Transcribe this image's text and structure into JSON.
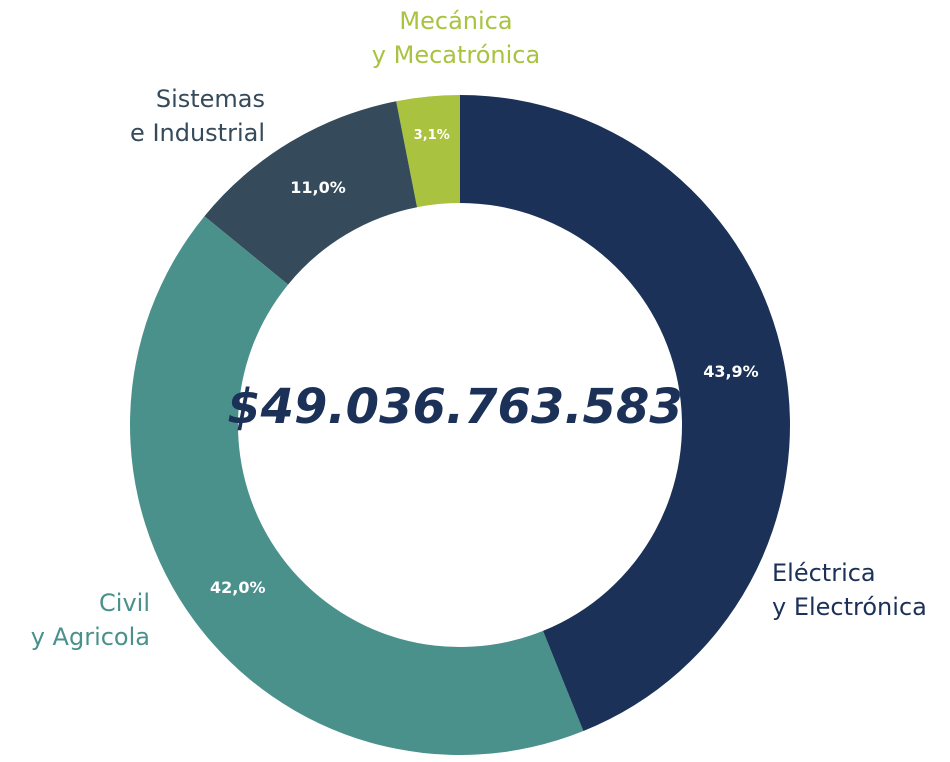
{
  "chart_data": {
    "type": "donut",
    "center_label": "$49.036.763.583",
    "categories": [
      "Eléctrica\ny Electrónica",
      "Civil\ny Agricola",
      "Sistemas\ne Industrial",
      "Mecánica\ny Mecatrónica"
    ],
    "values": [
      43.9,
      42.0,
      11.0,
      3.1
    ],
    "value_labels": [
      "43,9%",
      "42,0%",
      "11,0%",
      "3,1%"
    ],
    "colors": [
      "#1b3157",
      "#4a918c",
      "#354a5a",
      "#a9c23f"
    ]
  }
}
